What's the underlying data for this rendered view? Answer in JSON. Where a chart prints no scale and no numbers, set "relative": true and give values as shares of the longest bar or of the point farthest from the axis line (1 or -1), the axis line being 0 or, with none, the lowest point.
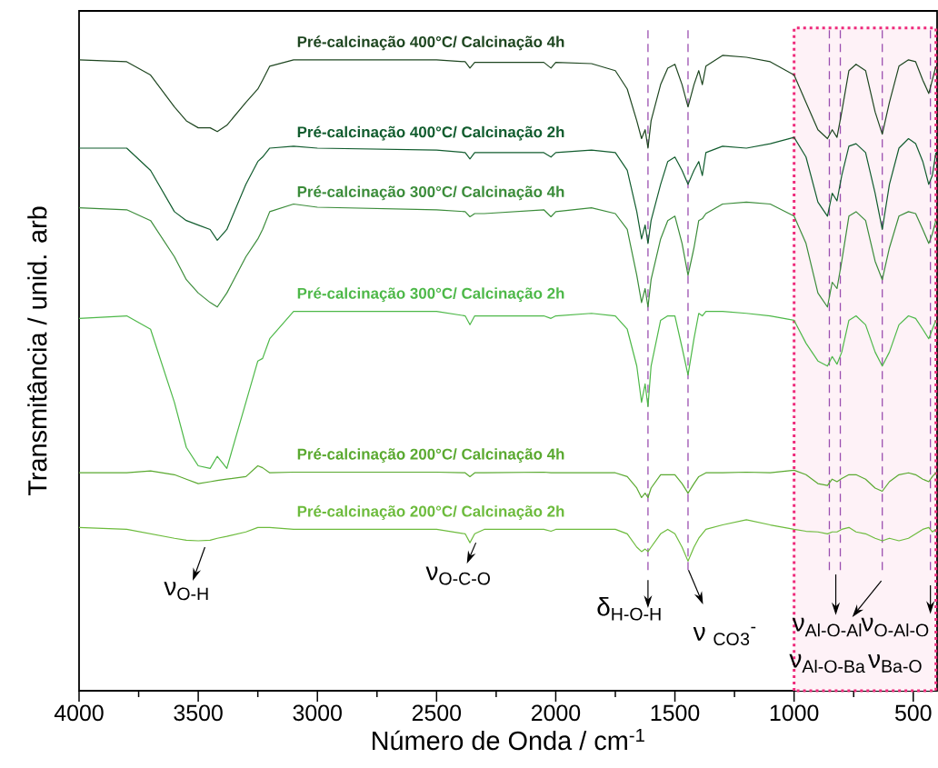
{
  "chart_data": {
    "type": "line",
    "relative": true,
    "xlabel": "Número de Onda / cm$^{-1}$",
    "ylabel": "Transmitância / unid. arb",
    "xlim": [
      4000,
      400
    ],
    "xticks": [
      4000,
      {
        "value": 3750,
        "label": null
      },
      3500,
      {
        "value": 3250,
        "label": null
      },
      3000,
      {
        "value": 2750,
        "label": null
      },
      2500,
      {
        "value": 2250,
        "label": null
      },
      2000,
      {
        "value": 1750,
        "label": null
      },
      1500,
      {
        "value": 1250,
        "label": null
      },
      1000,
      {
        "value": 750,
        "label": null
      },
      500
    ],
    "x": [
      4000,
      3800,
      3700,
      3600,
      3550,
      3500,
      3450,
      3420,
      3380,
      3300,
      3250,
      3230,
      3200,
      3100,
      3000,
      2500,
      2380,
      2360,
      2340,
      2300,
      2050,
      2020,
      2000,
      1850,
      1750,
      1700,
      1660,
      1640,
      1625,
      1613,
      1600,
      1560,
      1530,
      1500,
      1470,
      1445,
      1420,
      1400,
      1385,
      1370,
      1300,
      1200,
      1100,
      1000,
      950,
      900,
      860,
      840,
      820,
      800,
      770,
      740,
      700,
      660,
      630,
      600,
      560,
      520,
      490,
      460,
      435,
      420,
      405
    ],
    "series": [
      {
        "name": "Pré-calcinação 400°C/ Calcinação 4h",
        "color": "#1e4620",
        "values": [
          0.993,
          0.99,
          0.969,
          0.919,
          0.897,
          0.886,
          0.886,
          0.88,
          0.89,
          0.926,
          0.947,
          0.961,
          0.983,
          0.993,
          0.993,
          0.993,
          0.99,
          0.98,
          0.989,
          0.989,
          0.989,
          0.98,
          0.989,
          0.987,
          0.976,
          0.947,
          0.897,
          0.869,
          0.883,
          0.854,
          0.897,
          0.954,
          0.98,
          0.986,
          0.954,
          0.919,
          0.954,
          0.976,
          0.954,
          0.983,
          1.0,
          0.997,
          0.99,
          0.969,
          0.926,
          0.883,
          0.869,
          0.883,
          0.871,
          0.911,
          0.976,
          0.986,
          0.976,
          0.911,
          0.876,
          0.926,
          0.983,
          0.993,
          0.99,
          0.961,
          0.94,
          0.961,
          0.983
        ]
      },
      {
        "name": "Pré-calcinação 400°C/ Calcinação 2h",
        "color": "#115c2e",
        "values": [
          0.854,
          0.854,
          0.819,
          0.754,
          0.74,
          0.733,
          0.726,
          0.709,
          0.726,
          0.797,
          0.833,
          0.84,
          0.854,
          0.857,
          0.854,
          0.851,
          0.847,
          0.837,
          0.847,
          0.847,
          0.847,
          0.84,
          0.847,
          0.851,
          0.847,
          0.819,
          0.754,
          0.711,
          0.733,
          0.704,
          0.74,
          0.797,
          0.833,
          0.84,
          0.819,
          0.797,
          0.819,
          0.833,
          0.811,
          0.847,
          0.857,
          0.854,
          0.861,
          0.871,
          0.84,
          0.769,
          0.747,
          0.783,
          0.771,
          0.811,
          0.857,
          0.861,
          0.847,
          0.783,
          0.726,
          0.797,
          0.854,
          0.869,
          0.861,
          0.833,
          0.797,
          0.811,
          0.847
        ]
      },
      {
        "name": "Pré-calcinação 300°C/ Calcinação 4h",
        "color": "#3b8c3a",
        "values": [
          0.76,
          0.757,
          0.74,
          0.683,
          0.647,
          0.626,
          0.611,
          0.604,
          0.626,
          0.683,
          0.711,
          0.726,
          0.754,
          0.766,
          0.761,
          0.757,
          0.754,
          0.746,
          0.751,
          0.751,
          0.757,
          0.746,
          0.754,
          0.76,
          0.751,
          0.726,
          0.654,
          0.611,
          0.633,
          0.604,
          0.647,
          0.711,
          0.74,
          0.747,
          0.704,
          0.654,
          0.697,
          0.74,
          0.743,
          0.751,
          0.766,
          0.769,
          0.766,
          0.747,
          0.704,
          0.626,
          0.604,
          0.643,
          0.633,
          0.676,
          0.747,
          0.754,
          0.74,
          0.676,
          0.647,
          0.697,
          0.747,
          0.754,
          0.751,
          0.726,
          0.704,
          0.719,
          0.74
        ]
      },
      {
        "name": "Pré-calcinação 300°C/ Calcinação 2h",
        "color": "#4db848",
        "values": [
          0.586,
          0.59,
          0.569,
          0.454,
          0.383,
          0.354,
          0.35,
          0.369,
          0.35,
          0.454,
          0.519,
          0.523,
          0.554,
          0.597,
          0.597,
          0.597,
          0.59,
          0.576,
          0.59,
          0.59,
          0.59,
          0.586,
          0.59,
          0.594,
          0.59,
          0.569,
          0.511,
          0.454,
          0.483,
          0.447,
          0.511,
          0.583,
          0.59,
          0.59,
          0.54,
          0.497,
          0.554,
          0.594,
          0.59,
          0.597,
          0.597,
          0.594,
          0.59,
          0.583,
          0.547,
          0.519,
          0.511,
          0.526,
          0.514,
          0.533,
          0.583,
          0.59,
          0.576,
          0.533,
          0.511,
          0.533,
          0.576,
          0.59,
          0.586,
          0.569,
          0.554,
          0.569,
          0.583
        ]
      },
      {
        "name": "Pré-calcinação 200°C/ Calcinação 4h",
        "color": "#5aa930",
        "values": [
          0.343,
          0.343,
          0.346,
          0.34,
          0.333,
          0.326,
          0.329,
          0.331,
          0.333,
          0.337,
          0.354,
          0.351,
          0.343,
          0.344,
          0.344,
          0.344,
          0.343,
          0.337,
          0.343,
          0.343,
          0.344,
          0.343,
          0.343,
          0.343,
          0.343,
          0.337,
          0.319,
          0.304,
          0.311,
          0.304,
          0.319,
          0.34,
          0.34,
          0.34,
          0.326,
          0.311,
          0.326,
          0.337,
          0.34,
          0.343,
          0.343,
          0.344,
          0.343,
          0.347,
          0.34,
          0.326,
          0.323,
          0.333,
          0.329,
          0.334,
          0.34,
          0.34,
          0.333,
          0.319,
          0.314,
          0.329,
          0.34,
          0.343,
          0.34,
          0.333,
          0.329,
          0.337,
          0.343
        ]
      },
      {
        "name": "Pré-calcinação 200°C/ Calcinação 2h",
        "color": "#6cbb3c",
        "values": [
          0.257,
          0.254,
          0.247,
          0.24,
          0.237,
          0.236,
          0.237,
          0.24,
          0.243,
          0.25,
          0.257,
          0.257,
          0.257,
          0.254,
          0.254,
          0.254,
          0.247,
          0.233,
          0.247,
          0.254,
          0.254,
          0.251,
          0.254,
          0.254,
          0.254,
          0.247,
          0.226,
          0.219,
          0.223,
          0.219,
          0.226,
          0.247,
          0.254,
          0.247,
          0.226,
          0.204,
          0.226,
          0.24,
          0.247,
          0.254,
          0.261,
          0.269,
          0.261,
          0.254,
          0.251,
          0.25,
          0.247,
          0.25,
          0.25,
          0.254,
          0.257,
          0.25,
          0.247,
          0.24,
          0.236,
          0.24,
          0.236,
          0.24,
          0.247,
          0.254,
          0.257,
          0.25,
          0.254
        ]
      }
    ],
    "ref_lines": [
      {
        "axis": "x",
        "value": 1613,
        "color": "#9b4fb0",
        "line_style": "dashed"
      },
      {
        "axis": "x",
        "value": 1445,
        "color": "#9b4fb0",
        "line_style": "dashed"
      },
      {
        "axis": "x",
        "value": 852,
        "color": "#9b4fb0",
        "line_style": "dashed"
      },
      {
        "axis": "x",
        "value": 806,
        "color": "#9b4fb0",
        "line_style": "dashed"
      },
      {
        "axis": "x",
        "value": 630,
        "color": "#9b4fb0",
        "line_style": "dashed"
      },
      {
        "axis": "x",
        "value": 428,
        "color": "#9b4fb0",
        "line_style": "dashed"
      }
    ],
    "bands": [
      {
        "axis": "x",
        "from": 1000,
        "to": 405,
        "color": "#ee2a7b"
      }
    ],
    "annotations": [
      "ν$_{O-H}$",
      "ν$_{O-C-O}$",
      "δ$_{H-O-H}$",
      "ν $_{CO}$$_{3}$$^{-}$",
      "ν$_{Al-O-Al}$",
      "ν$_{Al-O-Ba}$",
      "ν$_{O-Al-O}$",
      "ν$_{Ba-O}$"
    ]
  }
}
